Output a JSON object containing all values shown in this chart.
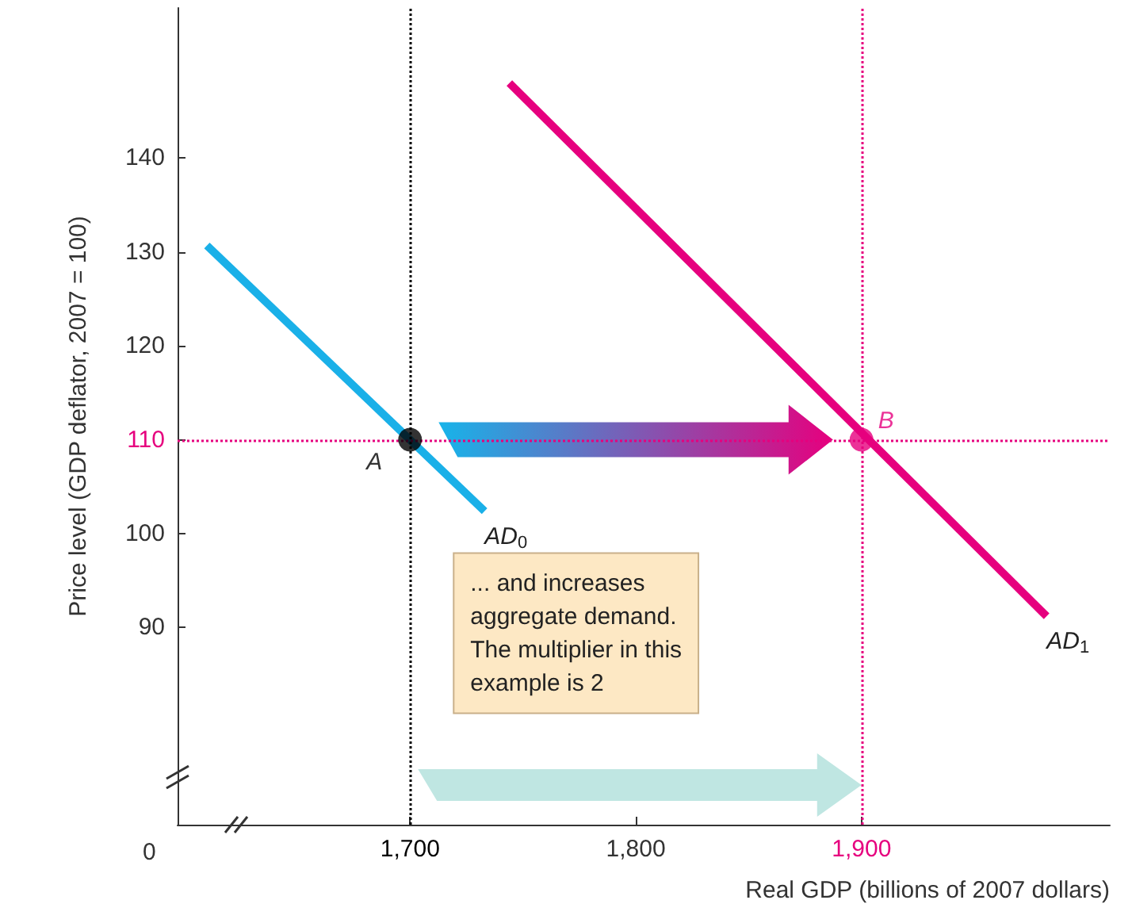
{
  "chart_data": {
    "type": "line",
    "xlabel": "Real GDP (billions of 2007 dollars)",
    "ylabel": "Price level (GDP deflator, 2007 = 100)",
    "xlim": [
      1597,
      2010
    ],
    "ylim": [
      69,
      156
    ],
    "xticks": [
      {
        "value": 1700,
        "label": "1,700"
      },
      {
        "value": 1800,
        "label": "1,800"
      },
      {
        "value": 1900,
        "label": "1,900"
      }
    ],
    "yticks": [
      90,
      100,
      110,
      120,
      130,
      140
    ],
    "grid": false,
    "legend": false,
    "marker": "none",
    "series": [
      {
        "name": "AD$_{0}$",
        "color": "#1ab0e8",
        "x": [
          1610,
          1733
        ],
        "values": [
          130.7,
          102.4
        ]
      },
      {
        "name": "AD$_{1}$",
        "color": "#e6007e",
        "x": [
          1744,
          1982
        ],
        "values": [
          148,
          91.2
        ]
      },
      {
        "type": "scatter",
        "marker": "circle",
        "x": [
          1700,
          1900
        ],
        "values": [
          110,
          110
        ],
        "colors": [
          "#000000",
          "#e6007e"
        ],
        "value_labels": [
          "A",
          "B"
        ]
      }
    ],
    "ref_lines": [
      {
        "axis": "x",
        "value": 1700,
        "color": "#000000",
        "line_style": "dotted"
      },
      {
        "axis": "x",
        "value": 1900,
        "color": "#e6007e",
        "line_style": "dotted"
      },
      {
        "axis": "y",
        "value": 110,
        "color": "#e6007e",
        "line_style": "dotted"
      }
    ],
    "annotations": [
      "... and increases\naggregate demand.\nThe multiplier in this\nexample is 2",
      "0"
    ]
  }
}
